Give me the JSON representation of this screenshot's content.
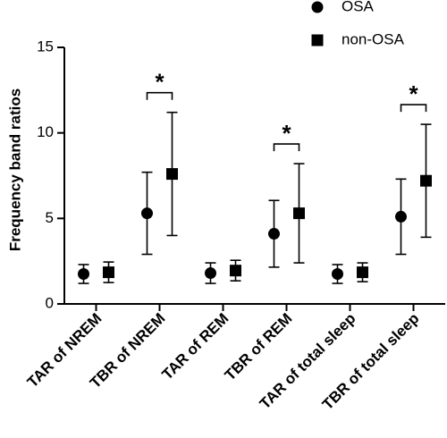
{
  "chart_data": {
    "type": "dot-errorbar",
    "y_label": "Frequency band ratios",
    "categories": [
      "TAR of NREM",
      "TBR of NREM",
      "TAR of REM",
      "TBR of REM",
      "TAR of total sleep",
      "TBR of total sleep"
    ],
    "series": [
      {
        "name": "OSA",
        "marker": "circle",
        "color": "#000000",
        "values": [
          1.75,
          5.3,
          1.8,
          4.1,
          1.75,
          5.1
        ],
        "errors": [
          0.55,
          2.4,
          0.6,
          1.95,
          0.55,
          2.2
        ]
      },
      {
        "name": "non-OSA",
        "marker": "square",
        "color": "#000000",
        "values": [
          1.85,
          7.6,
          1.95,
          5.3,
          1.85,
          7.2
        ],
        "errors": [
          0.6,
          3.6,
          0.6,
          2.9,
          0.55,
          3.3
        ]
      }
    ],
    "annotations": [
      {
        "text": "*",
        "category": "TBR of NREM"
      },
      {
        "text": "*",
        "category": "TBR of REM"
      },
      {
        "text": "*",
        "category": "TBR of total sleep"
      }
    ],
    "ylim": [
      0,
      15
    ],
    "yticks": [
      0,
      5,
      10,
      15
    ],
    "legend": "top-right"
  }
}
